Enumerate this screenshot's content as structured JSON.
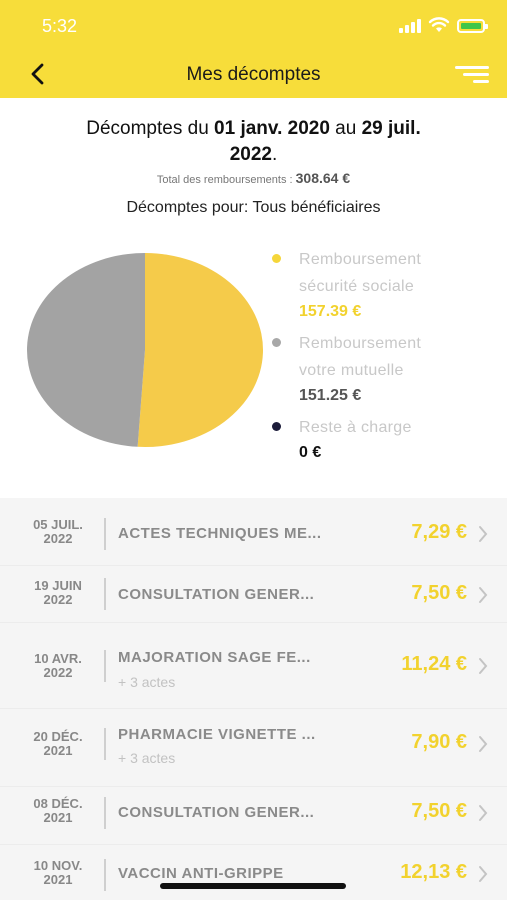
{
  "status": {
    "time": "5:32"
  },
  "header": {
    "title": "Mes décomptes"
  },
  "summary": {
    "prefix": "Décomptes du ",
    "start": "01 janv. 2020",
    "middle": " au ",
    "end_line1": "29 juil.",
    "end_line2": "2022",
    "suffix": ".",
    "total_label": "Total des remboursements : ",
    "total_value": "308.64 €",
    "beneficiaries": "Décomptes pour: Tous bénéficiaires"
  },
  "chart_data": {
    "type": "pie",
    "title": "",
    "slices": [
      {
        "label": "Remboursement sécurité sociale",
        "value": 157.39,
        "color": "#f5cb4a"
      },
      {
        "label": "Remboursement votre mutuelle",
        "value": 151.25,
        "color": "#a3a3a3"
      },
      {
        "label": "Reste à charge",
        "value": 0,
        "color": "#1c1c3a"
      }
    ]
  },
  "legend": [
    {
      "line1": "Remboursement",
      "line2": "sécurité sociale",
      "value": "157.39 €",
      "color": "#f5d63a",
      "value_color": "#f2d22e"
    },
    {
      "line1": "Remboursement",
      "line2": "votre mutuelle",
      "value": "151.25 €",
      "color": "#a8a8a8",
      "value_color": "#555555"
    },
    {
      "line1": "Reste à charge",
      "line2": "",
      "value": "0 €",
      "color": "#1c1c3a",
      "value_color": "#111111"
    }
  ],
  "decomptes": [
    {
      "date1": "05 JUIL.",
      "date2": "2022",
      "label": "ACTES TECHNIQUES ME...",
      "sub": "",
      "amount": "7,29 €"
    },
    {
      "date1": "19 JUIN",
      "date2": "2022",
      "label": "CONSULTATION GENER...",
      "sub": "",
      "amount": "7,50 €"
    },
    {
      "date1": "10 AVR.",
      "date2": "2022",
      "label": "MAJORATION SAGE FE...",
      "sub": "+ 3 actes",
      "amount": "11,24 €"
    },
    {
      "date1": "20 DÉC.",
      "date2": "2021",
      "label": "PHARMACIE VIGNETTE ...",
      "sub": "+ 3 actes",
      "amount": "7,90 €"
    },
    {
      "date1": "08 DÉC.",
      "date2": "2021",
      "label": "CONSULTATION GENER...",
      "sub": "",
      "amount": "7,50 €"
    },
    {
      "date1": "10 NOV.",
      "date2": "2021",
      "label": "VACCIN ANTI-GRIPPE",
      "sub": "",
      "amount": "12,13 €"
    }
  ]
}
